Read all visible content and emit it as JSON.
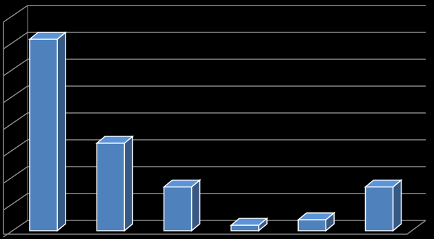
{
  "chart_data": {
    "type": "bar3d",
    "categories": [
      null,
      null,
      null,
      null,
      null,
      null
    ],
    "values": [
      7,
      3.2,
      1.6,
      0.2,
      0.4,
      1.6
    ],
    "color": "#4f81bd",
    "ylim": [
      0,
      8
    ],
    "yticks": [
      0,
      1,
      2,
      3,
      4,
      5,
      6,
      7,
      8
    ],
    "grid": true
  }
}
